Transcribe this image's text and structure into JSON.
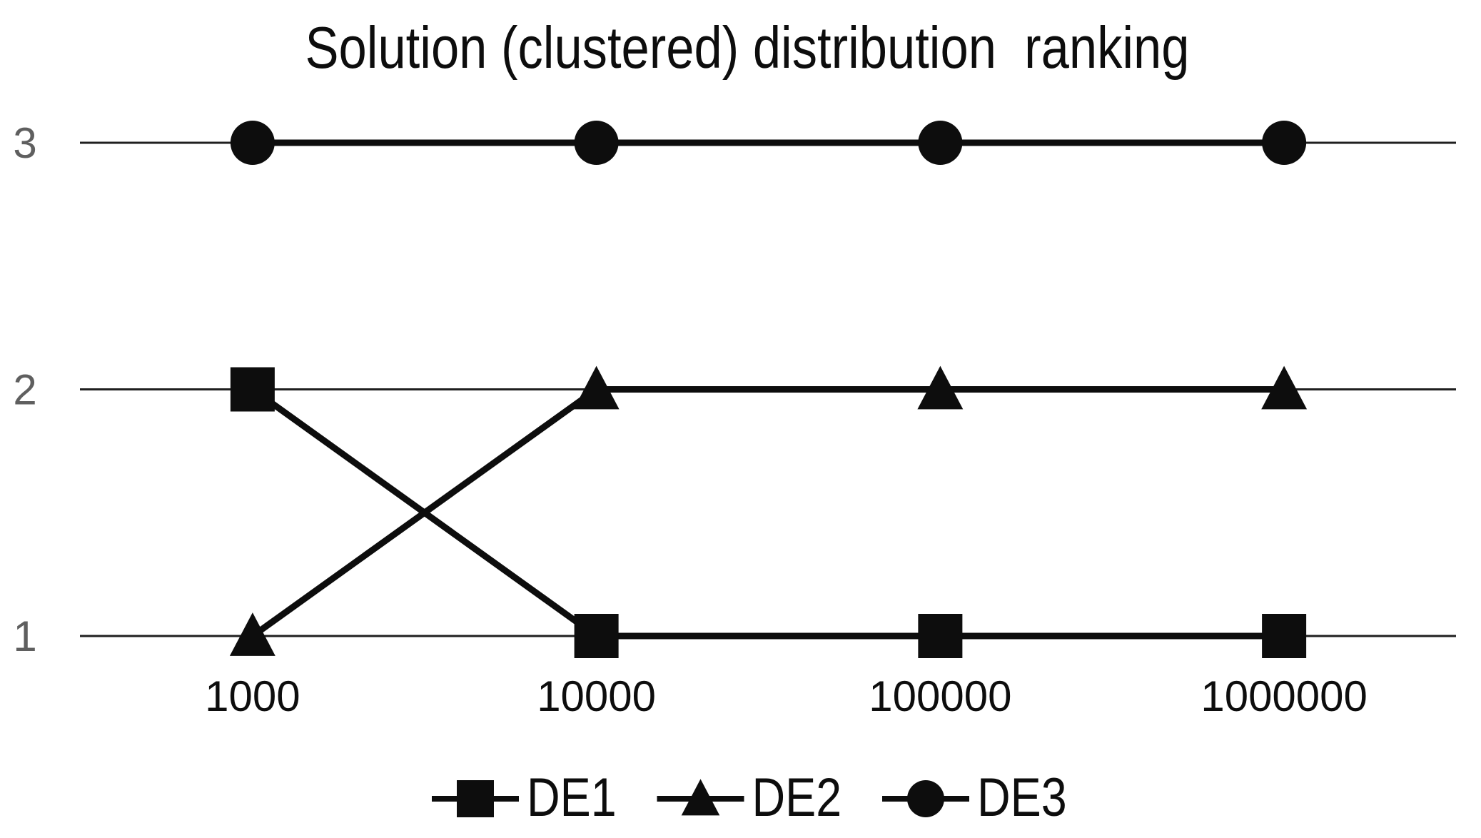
{
  "chart_data": {
    "type": "line",
    "title": "Solution (clustered) distribution  ranking",
    "categories": [
      "1000",
      "10000",
      "100000",
      "1000000"
    ],
    "series": [
      {
        "name": "DE1",
        "marker": "square",
        "values": [
          2,
          1,
          1,
          1
        ]
      },
      {
        "name": "DE2",
        "marker": "triangle",
        "values": [
          1,
          2,
          2,
          2
        ]
      },
      {
        "name": "DE3",
        "marker": "circle",
        "values": [
          3,
          3,
          3,
          3
        ]
      }
    ],
    "y_ticks": [
      "1",
      "2",
      "3"
    ],
    "ylim": [
      1,
      3
    ],
    "xlabel": "",
    "ylabel": "",
    "grid": "horizontal-only",
    "legend_position": "bottom",
    "legend_labels": [
      "DE1",
      "DE2",
      "DE3"
    ],
    "colors": {
      "series": "#0d0d0d",
      "gridline": "#1f1f1f",
      "y_tick_label": "#5f5f5f",
      "x_tick_label": "#0d0d0d",
      "title": "#0d0d0d",
      "background": "#ffffff"
    }
  }
}
